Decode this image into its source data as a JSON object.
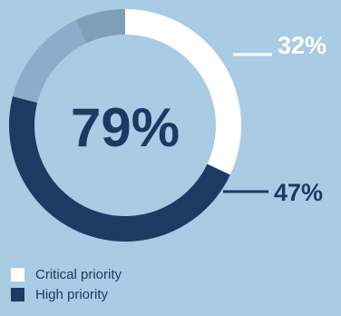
{
  "chart_data": {
    "type": "pie",
    "variant": "donut",
    "center_label": "79%",
    "segments": [
      {
        "name": "Critical priority",
        "value": 32,
        "color": "#ffffff",
        "label": "32%"
      },
      {
        "name": "High priority",
        "value": 47,
        "color": "#1d3a63",
        "label": "47%"
      },
      {
        "name": "",
        "value": 14,
        "color": "#8aaec9",
        "label": ""
      },
      {
        "name": "",
        "value": 7,
        "color": "#7f9fb9",
        "label": ""
      }
    ],
    "legend": [
      {
        "label": "Critical priority",
        "color": "#ffffff"
      },
      {
        "label": "High priority",
        "color": "#1d3a63"
      }
    ],
    "legend_position": "bottom-left"
  },
  "colors": {
    "background": "#a9cbe3",
    "text": "#1a3a63"
  }
}
